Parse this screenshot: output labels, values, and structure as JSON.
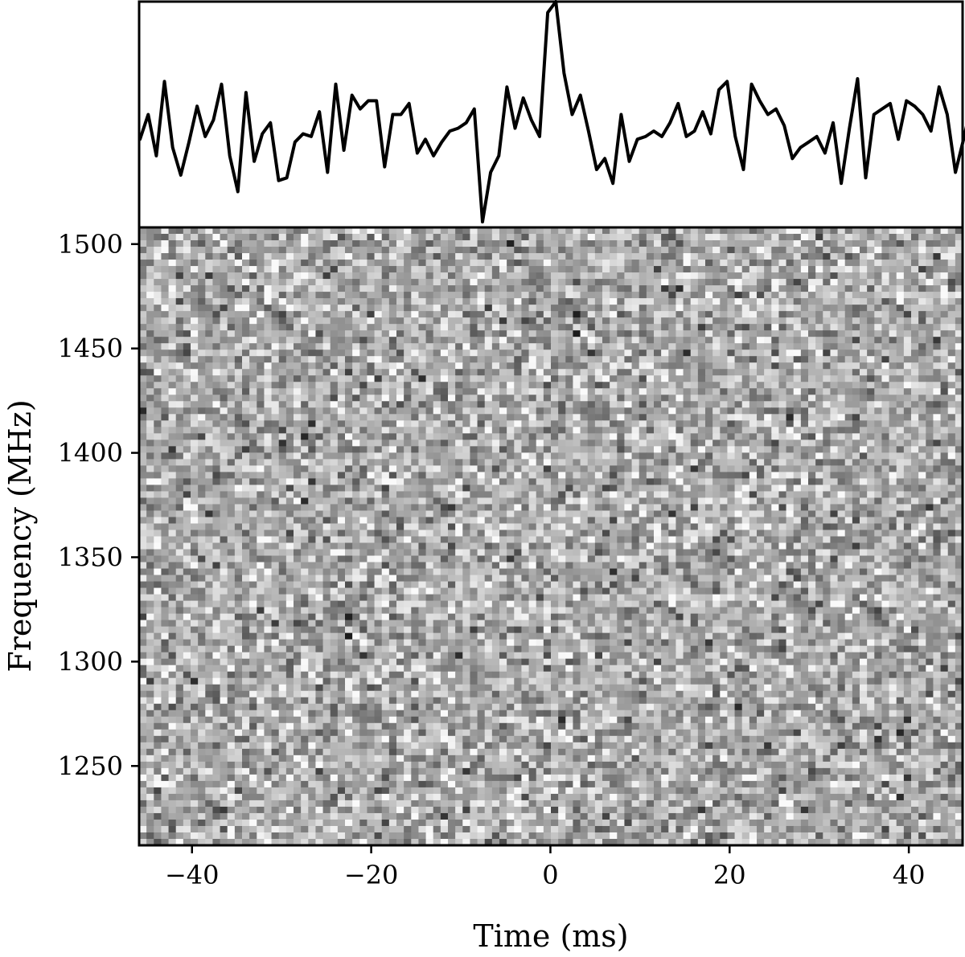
{
  "chart_data": [
    {
      "type": "line",
      "panel": "pulse-profile",
      "title": "",
      "xlabel": "",
      "ylabel": "",
      "xlim": [
        -45.9,
        46
      ],
      "ylim": [
        -3.2,
        5.0
      ],
      "x_start": -45.8,
      "x_step": 0.91,
      "values": [
        0.0,
        0.9,
        -0.6,
        2.1,
        -0.3,
        -1.3,
        -0.1,
        1.2,
        0.1,
        0.7,
        2.0,
        -0.6,
        -1.9,
        1.7,
        -0.8,
        0.2,
        0.6,
        -1.5,
        -1.4,
        -0.1,
        0.2,
        0.1,
        1.0,
        -1.2,
        2.0,
        -0.4,
        1.6,
        1.1,
        1.4,
        1.4,
        -1.0,
        0.9,
        0.9,
        1.3,
        -0.5,
        0.0,
        -0.6,
        -0.1,
        0.3,
        0.4,
        0.6,
        1.1,
        -3.0,
        -1.2,
        -0.6,
        1.9,
        0.4,
        1.5,
        0.7,
        0.1,
        4.6,
        5.0,
        2.4,
        0.9,
        1.6,
        0.3,
        -1.1,
        -0.7,
        -1.6,
        0.9,
        -0.8,
        0.0,
        0.1,
        0.3,
        0.1,
        0.6,
        1.3,
        0.1,
        0.3,
        1.0,
        0.2,
        1.8,
        2.1,
        0.1,
        -1.1,
        2.0,
        1.4,
        0.9,
        1.1,
        0.5,
        -0.7,
        -0.3,
        -0.1,
        0.1,
        -0.5,
        0.6,
        -1.6,
        0.4,
        2.2,
        -1.4,
        0.9,
        1.1,
        1.3,
        0.0,
        1.4,
        1.2,
        0.9,
        0.3,
        1.9,
        0.9,
        -1.2,
        0.0,
        1.3
      ],
      "grid": false,
      "legend": "none"
    },
    {
      "type": "heatmap",
      "panel": "dynamic-spectrum",
      "title": "",
      "xlabel": "Time (ms)",
      "ylabel": "Frequency (MHz)",
      "xlim": [
        -45.9,
        46
      ],
      "ylim": [
        1212,
        1508
      ],
      "x_ticks": [
        -40,
        -20,
        0,
        20,
        40
      ],
      "x_tick_labels": [
        "−40",
        "−20",
        "0",
        "20",
        "40"
      ],
      "y_ticks": [
        1250,
        1300,
        1350,
        1400,
        1450,
        1500
      ],
      "y_tick_labels": [
        "1250",
        "1300",
        "1350",
        "1400",
        "1450",
        "1500"
      ],
      "time_bins": 112,
      "frequency_channels": 96,
      "colormap": "grayscale",
      "grid": false,
      "legend": "none"
    }
  ]
}
